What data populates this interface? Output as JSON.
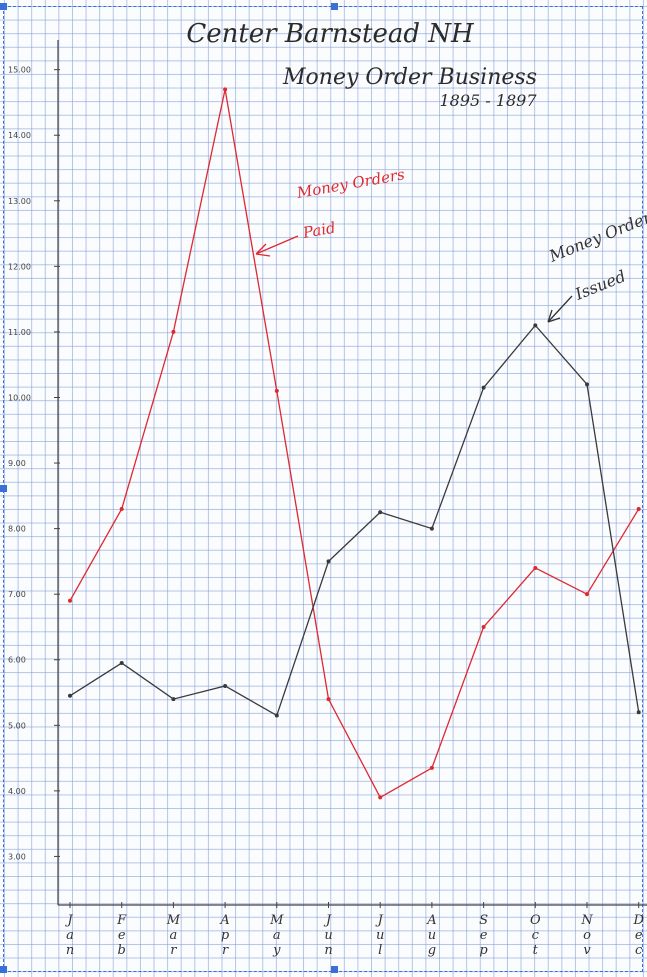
{
  "chart_data": {
    "type": "line",
    "title_lines": [
      "Center Barnstead NH",
      "Money Order Business",
      "1895 - 1897"
    ],
    "xlabel": "",
    "ylabel": "",
    "categories": [
      "Jan",
      "Feb",
      "Mar",
      "Apr",
      "May",
      "Jun",
      "Jul",
      "Aug",
      "Sep",
      "Oct",
      "Nov",
      "Dec"
    ],
    "y_ticks": [
      "15.00",
      "14.00",
      "13.00",
      "12.00",
      "11.00",
      "10.00",
      "9.00",
      "8.00",
      "7.00",
      "6.00",
      "5.00",
      "4.00",
      "3.00"
    ],
    "ylim": [
      2.0,
      15.3
    ],
    "grid": true,
    "series": [
      {
        "name": "Money Orders Paid",
        "color": "#e0282f",
        "values": [
          6.9,
          8.3,
          11.0,
          14.7,
          10.1,
          5.4,
          3.9,
          4.35,
          6.5,
          7.4,
          7.0,
          8.3
        ]
      },
      {
        "name": "Money Orders Issued",
        "color": "#3a3a3a",
        "values": [
          5.45,
          5.95,
          5.4,
          5.6,
          5.15,
          7.5,
          8.25,
          8.0,
          10.15,
          11.1,
          10.2,
          5.2
        ]
      }
    ],
    "annotations": [
      {
        "text_lines": [
          "Money Orders",
          "Paid"
        ],
        "color": "#e0282f"
      },
      {
        "text_lines": [
          "Money Orders",
          "Issued"
        ],
        "color": "#3a3a3a"
      }
    ]
  }
}
